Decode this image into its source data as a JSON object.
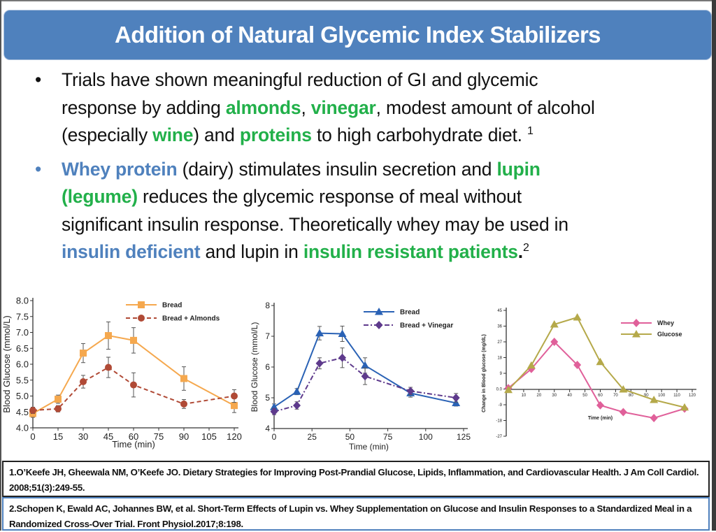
{
  "slide": {
    "title": "Addition of Natural Glycemic Index Stabilizers",
    "accent_color": "#4f81bd",
    "highlight_green": "#22b04a",
    "bullets": [
      {
        "marker": "•",
        "segments": [
          {
            "text": "Trials have shown meaningful reduction of GI and glycemic"
          },
          {
            "text": "response by adding "
          },
          {
            "text": "almonds",
            "style": "green-bold"
          },
          {
            "text": ", "
          },
          {
            "text": "vinegar",
            "style": "green-bold"
          },
          {
            "text": ", modest amount of alcohol"
          },
          {
            "text": "(especially "
          },
          {
            "text": "wine",
            "style": "green-bold"
          },
          {
            "text": ") and "
          },
          {
            "text": "proteins",
            "style": "green-bold"
          },
          {
            "text": " to high carbohydrate diet. "
          },
          {
            "text": "1",
            "style": "superscript"
          }
        ]
      },
      {
        "marker": "•",
        "segments": [
          {
            "text": "Whey protein",
            "style": "blue-bold"
          },
          {
            "text": " (dairy) stimulates insulin secretion and "
          },
          {
            "text": "lupin",
            "style": "green-bold"
          },
          {
            "text": "(legume)",
            "style": "green-bold"
          },
          {
            "text": " reduces the glycemic response of meal without"
          },
          {
            "text": "significant insulin response. Theoretically whey may be used in"
          },
          {
            "text": "insulin deficient",
            "style": "blue-bold"
          },
          {
            "text": " and lupin in "
          },
          {
            "text": "insulin resistant patients",
            "style": "green-bold"
          },
          {
            "text": ".",
            "style": "bold"
          },
          {
            "text": "2",
            "style": "superscript"
          }
        ]
      }
    ],
    "references": [
      "1.O’Keefe JH, Gheewala NM, O’Keefe JO. Dietary Strategies for Improving Post-Prandial Glucose, Lipids, Inflammation, and Cardiovascular Health. J Am Coll Cardiol. 2008;51(3):249-55.",
      "2.Schopen K, Ewald AC, Johannes BW, et al. Short-Term Effects of Lupin vs. Whey Supplementation on Glucose and Insulin Responses to a Standardized Meal in a Randomized Cross-Over Trial. Front Physiol.2017;8:198."
    ]
  },
  "chart_data": [
    {
      "type": "line",
      "title": "",
      "xlabel": "Time (min)",
      "ylabel": "Blood Glucose (mmol/L)",
      "xlim": [
        0,
        120
      ],
      "ylim": [
        4.0,
        8.0
      ],
      "xticks": [
        "0",
        "15",
        "30",
        "45",
        "60",
        "75",
        "90",
        "105",
        "120"
      ],
      "yticks": [
        "4.0",
        "4.5",
        "5.0",
        "5.5",
        "6.0",
        "6.5",
        "7.0",
        "7.5",
        "8.0"
      ],
      "grid": false,
      "legend": "top-right",
      "x": [
        0,
        15,
        30,
        45,
        60,
        90,
        120
      ],
      "series": [
        {
          "name": "Bread",
          "values": [
            4.45,
            4.9,
            6.35,
            6.9,
            6.75,
            5.55,
            4.7
          ],
          "errors": [
            0.12,
            0.13,
            0.3,
            0.43,
            0.4,
            0.37,
            0.22
          ],
          "color": "#f5a84e",
          "marker": "square",
          "dash": "solid"
        },
        {
          "name": "Bread + Almonds",
          "values": [
            4.55,
            4.6,
            5.45,
            5.9,
            5.35,
            4.75,
            5.0
          ],
          "errors": [
            0.1,
            0.1,
            0.2,
            0.32,
            0.38,
            0.14,
            0.2
          ],
          "color": "#b04a36",
          "marker": "circle",
          "dash": "dashed"
        }
      ]
    },
    {
      "type": "line",
      "title": "",
      "xlabel": "Time (min)",
      "ylabel": "Blood Glucose (mmol/L)",
      "xlim": [
        0,
        125
      ],
      "ylim": [
        4,
        8
      ],
      "xticks": [
        "0",
        "25",
        "50",
        "75",
        "100",
        "125"
      ],
      "yticks": [
        "4",
        "5",
        "6",
        "7",
        "8"
      ],
      "grid": false,
      "legend": "top-right",
      "x": [
        0,
        15,
        30,
        45,
        60,
        90,
        120
      ],
      "series": [
        {
          "name": "Bread",
          "values": [
            4.7,
            5.2,
            7.1,
            7.08,
            6.05,
            5.15,
            4.83
          ],
          "errors": [
            0.1,
            0.1,
            0.22,
            0.25,
            0.25,
            0.13,
            0.1
          ],
          "color": "#2a62b5",
          "marker": "triangle",
          "dash": "solid"
        },
        {
          "name": "Bread + Vinegar",
          "values": [
            4.55,
            4.75,
            6.12,
            6.3,
            5.7,
            5.22,
            5.0
          ],
          "errors": [
            0.1,
            0.12,
            0.18,
            0.32,
            0.27,
            0.12,
            0.14
          ],
          "color": "#5e3a8c",
          "marker": "diamond",
          "dash": "dashdot"
        }
      ]
    },
    {
      "type": "line",
      "title": "",
      "xlabel": "Time (min)",
      "ylabel": "Change in Blood glucose (mg/dL)",
      "xlim": [
        0,
        120
      ],
      "ylim": [
        -27,
        45
      ],
      "xticks": [
        "10",
        "20",
        "30",
        "40",
        "50",
        "60",
        "70",
        "80",
        "90",
        "100",
        "110",
        "120"
      ],
      "yticks": [
        "-27",
        "-18",
        "-9",
        "0.0",
        "9",
        "18",
        "27",
        "36",
        "45"
      ],
      "grid": false,
      "legend": "top-right",
      "x": [
        0,
        15,
        30,
        45,
        60,
        75,
        95,
        115
      ],
      "series": [
        {
          "name": "Whey",
          "values": [
            0.5,
            11.5,
            27,
            13.8,
            -9.3,
            -13.2,
            -16.6,
            -11.2
          ],
          "color": "#e0609a",
          "marker": "diamond",
          "dash": "solid"
        },
        {
          "name": "Glucose",
          "values": [
            -0.5,
            13.5,
            37,
            41,
            15.5,
            -0.2,
            -6.2,
            -10.5
          ],
          "color": "#b5a94a",
          "marker": "triangle",
          "dash": "solid"
        }
      ]
    }
  ]
}
